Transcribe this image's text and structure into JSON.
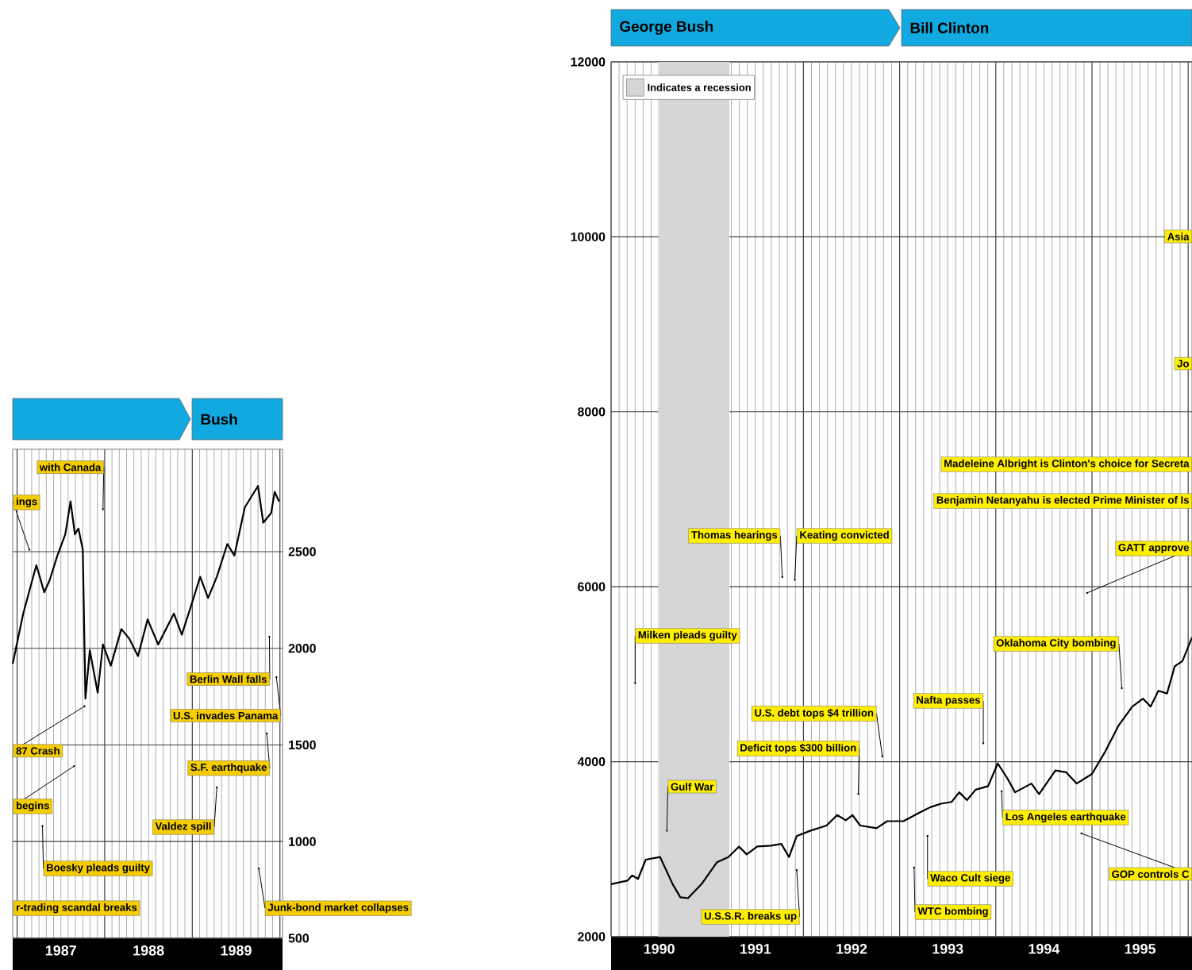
{
  "chart_data": [
    {
      "type": "line",
      "xlim": [
        1986.95,
        1990.03
      ],
      "ylim": [
        500,
        3030
      ],
      "xticks": [
        {
          "value": 1987,
          "label": null
        },
        {
          "value": 1987.5,
          "label": "1987"
        },
        {
          "value": 1988,
          "label": null
        },
        {
          "value": 1988.5,
          "label": "1988"
        },
        {
          "value": 1989,
          "label": null
        },
        {
          "value": 1989.5,
          "label": "1989"
        },
        {
          "value": 1990,
          "label": null
        }
      ],
      "yticks": [
        500,
        1000,
        1500,
        2000,
        2500
      ],
      "grid": true,
      "series": [
        {
          "color": "#000000",
          "x": [
            1986.95,
            1987.07,
            1987.22,
            1987.31,
            1987.37,
            1987.46,
            1987.55,
            1987.61,
            1987.66,
            1987.7,
            1987.75,
            1987.78,
            1987.83,
            1987.92,
            1987.98,
            1988.07,
            1988.19,
            1988.28,
            1988.38,
            1988.49,
            1988.61,
            1988.79,
            1988.88,
            1989.0,
            1989.09,
            1989.18,
            1989.28,
            1989.4,
            1989.48,
            1989.6,
            1989.75,
            1989.81,
            1989.9,
            1989.94,
            1989.99
          ],
          "values": [
            1920,
            2180,
            2430,
            2290,
            2350,
            2480,
            2590,
            2760,
            2590,
            2620,
            2510,
            1740,
            1990,
            1770,
            2020,
            1910,
            2100,
            2050,
            1960,
            2150,
            2020,
            2180,
            2070,
            2240,
            2370,
            2260,
            2370,
            2540,
            2480,
            2730,
            2840,
            2650,
            2700,
            2810,
            2760
          ]
        }
      ],
      "annotations": [
        {
          "text": "with Canada",
          "x": 1987.98,
          "y": 2720
        },
        {
          "text": "ings",
          "x": 1987.14,
          "y": 2510
        },
        {
          "text": "Berlin Wall falls",
          "x": 1989.88,
          "y": 2060
        },
        {
          "text": "U.S. invades Panama",
          "x": 1989.96,
          "y": 1850
        },
        {
          "text": "S.F. earthquake",
          "x": 1989.85,
          "y": 1560
        },
        {
          "text": "Valdez spill",
          "x": 1989.28,
          "y": 1280
        },
        {
          "text": "Boesky pleads guilty",
          "x": 1987.29,
          "y": 1080
        },
        {
          "text": "87 Crash",
          "x": 1987.77,
          "y": 1700
        },
        {
          "text": "begins",
          "x": 1987.65,
          "y": 1390
        },
        "r-trading scandal breaks",
        {
          "text": "Junk-bond market collapses",
          "x": 1989.76,
          "y": 860
        },
        "Bush"
      ]
    },
    {
      "type": "line",
      "xlim": [
        1990,
        1996.04
      ],
      "ylim": [
        2000,
        12000
      ],
      "xticks": [
        {
          "value": 1990,
          "label": null
        },
        {
          "value": 1990.5,
          "label": "1990"
        },
        {
          "value": 1991,
          "label": null
        },
        {
          "value": 1991.5,
          "label": "1991"
        },
        {
          "value": 1992,
          "label": null
        },
        {
          "value": 1992.5,
          "label": "1992"
        },
        {
          "value": 1993,
          "label": null
        },
        {
          "value": 1993.5,
          "label": "1993"
        },
        {
          "value": 1994,
          "label": null
        },
        {
          "value": 1994.5,
          "label": "1994"
        },
        {
          "value": 1995,
          "label": null
        },
        {
          "value": 1995.5,
          "label": "1995"
        },
        {
          "value": 1996,
          "label": null
        }
      ],
      "yticks": [
        2000,
        4000,
        6000,
        8000,
        10000,
        12000
      ],
      "grid": true,
      "legend": "top left",
      "series": [
        {
          "color": "#000000",
          "x": [
            1990.0,
            1990.17,
            1990.22,
            1990.28,
            1990.36,
            1990.51,
            1990.64,
            1990.72,
            1990.8,
            1990.94,
            1991.1,
            1991.22,
            1991.33,
            1991.41,
            1991.52,
            1991.66,
            1991.77,
            1991.85,
            1991.93,
            1992.07,
            1992.24,
            1992.35,
            1992.44,
            1992.51,
            1992.59,
            1992.76,
            1992.87,
            1993.04,
            1993.21,
            1993.32,
            1993.43,
            1993.54,
            1993.62,
            1993.7,
            1993.79,
            1993.92,
            1994.02,
            1994.12,
            1994.2,
            1994.37,
            1994.45,
            1994.62,
            1994.73,
            1994.84,
            1995.0,
            1995.14,
            1995.28,
            1995.42,
            1995.53,
            1995.61,
            1995.69,
            1995.78,
            1995.86,
            1995.94,
            1996.04
          ],
          "values": [
            2600,
            2640,
            2700,
            2660,
            2880,
            2910,
            2600,
            2450,
            2440,
            2600,
            2850,
            2910,
            3030,
            2940,
            3030,
            3040,
            3060,
            2910,
            3150,
            3210,
            3270,
            3390,
            3330,
            3390,
            3270,
            3240,
            3320,
            3320,
            3420,
            3480,
            3520,
            3540,
            3650,
            3560,
            3680,
            3720,
            3980,
            3810,
            3650,
            3750,
            3630,
            3900,
            3880,
            3750,
            3860,
            4120,
            4420,
            4630,
            4720,
            4630,
            4810,
            4780,
            5090,
            5150,
            5420
          ]
        }
      ],
      "bands": [
        {
          "axis": "x",
          "from": 1990.49,
          "to": 1991.23,
          "label": "Indicates a recession",
          "color": "#d6d6d6"
        }
      ],
      "annotations": [
        "Asia",
        "Jo",
        "Madeleine Albright is Clinton's choice for Secreta",
        "Benjamin Netanyahu is elected Prime Minister of Is",
        {
          "text": "Thomas hearings",
          "x": 1991.78,
          "y": 6110
        },
        {
          "text": "Keating convicted",
          "x": 1991.91,
          "y": 6080
        },
        {
          "text": "GATT approve",
          "x": 1994.95,
          "y": 5930
        },
        {
          "text": "Oklahoma City bombing",
          "x": 1995.31,
          "y": 4840
        },
        {
          "text": "Milken pleads guilty",
          "x": 1990.25,
          "y": 4900
        },
        {
          "text": "Nafta passes",
          "x": 1993.87,
          "y": 4210
        },
        {
          "text": "U.S. debt tops $4 trillion",
          "x": 1992.82,
          "y": 4060
        },
        {
          "text": "Deficit tops $300 billion",
          "x": 1992.57,
          "y": 3630
        },
        {
          "text": "Gulf War",
          "x": 1990.58,
          "y": 3210
        },
        {
          "text": "U.S.S.R. breaks up",
          "x": 1991.93,
          "y": 2760
        },
        {
          "text": "WTC bombing",
          "x": 1993.15,
          "y": 2790
        },
        {
          "text": "Waco Cult siege",
          "x": 1993.29,
          "y": 3150
        },
        {
          "text": "Los Angeles earthquake",
          "x": 1994.06,
          "y": 3660
        },
        {
          "text": "GOP controls C",
          "x": 1994.89,
          "y": 3180
        },
        "George Bush",
        "Bill Clinton"
      ]
    }
  ]
}
